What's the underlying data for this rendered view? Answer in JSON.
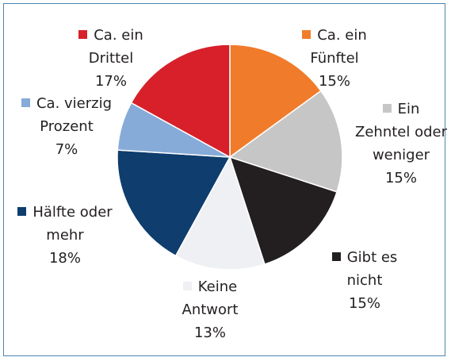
{
  "chart_data": {
    "type": "pie",
    "categories": [
      "Ca. ein Fünftel",
      "Ein Zehntel oder weniger",
      "Gibt es nicht",
      "Keine Antwort",
      "Hälfte oder mehr",
      "Ca. vierzig Prozent",
      "Ca. ein Drittel"
    ],
    "values": [
      15,
      15,
      15,
      13,
      18,
      7,
      17
    ],
    "value_labels": [
      "15%",
      "15%",
      "15%",
      "13%",
      "18%",
      "7%",
      "17%"
    ],
    "colors": [
      "#f07c2b",
      "#c6c6c6",
      "#231f20",
      "#eff0f3",
      "#0e3d6e",
      "#86abd8",
      "#d7202a"
    ]
  }
}
